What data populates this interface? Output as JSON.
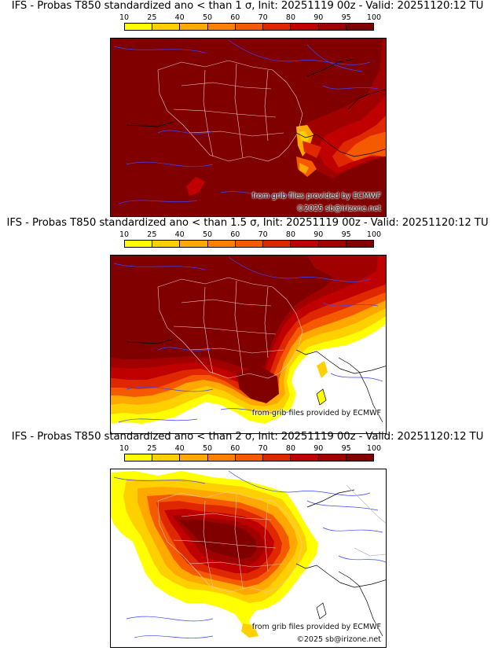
{
  "panels": [
    {
      "title": "IFS - Probas T850  standardized ano < than 1 σ, Init: 20251119 00z - Valid: 20251120:12 TU",
      "source_credit": "from grib files provided by ECMWF",
      "copyright": "©2025 sb@irizone.net"
    },
    {
      "title": "IFS - Probas T850  standardized ano < than 1.5 σ, Init: 20251119 00z - Valid: 20251120:12 TU",
      "source_credit": "from grib files provided by ECMWF",
      "copyright": ""
    },
    {
      "title": "IFS - Probas T850  standardized ano < than 2 σ, Init: 20251119 00z - Valid: 20251120:12 TU",
      "source_credit": "from grib files provided by ECMWF",
      "copyright": "©2025 sb@irizone.net"
    }
  ],
  "colorbar": {
    "tick_labels": [
      "10",
      "25",
      "40",
      "50",
      "60",
      "70",
      "80",
      "90",
      "95",
      "100"
    ],
    "colors": [
      "#ffff00",
      "#ffd000",
      "#ffa800",
      "#ff8000",
      "#f55a00",
      "#e02800",
      "#c00000",
      "#a00000",
      "#800000"
    ]
  }
}
